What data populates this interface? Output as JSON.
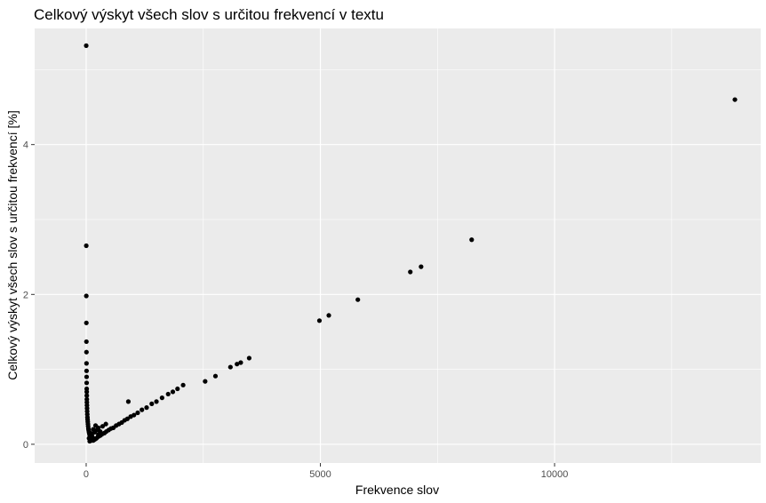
{
  "chart_data": {
    "type": "scatter",
    "title": "Celkový výskyt všech slov s určitou frekvencí v textu",
    "xlabel": "Frekvence slov",
    "ylabel": "Celkový výskyt všech slov s určitou frekvencí [%]",
    "xlim": [
      -1100,
      14400
    ],
    "ylim": [
      -0.25,
      5.55
    ],
    "x_ticks": [
      {
        "value": 0,
        "label": "0"
      },
      {
        "value": 5000,
        "label": "5000"
      },
      {
        "value": 10000,
        "label": "10000"
      }
    ],
    "y_ticks": [
      {
        "value": 0,
        "label": "0"
      },
      {
        "value": 2,
        "label": "2"
      },
      {
        "value": 4,
        "label": "4"
      }
    ],
    "x_minor": [
      2500,
      7500,
      12500
    ],
    "y_minor": [
      1,
      3,
      5
    ],
    "grid": true,
    "point_color": "#000000",
    "points": [
      {
        "x": 1,
        "y": 5.32
      },
      {
        "x": 2,
        "y": 2.65
      },
      {
        "x": 3,
        "y": 1.98
      },
      {
        "x": 4,
        "y": 1.62
      },
      {
        "x": 5,
        "y": 1.37
      },
      {
        "x": 6,
        "y": 1.23
      },
      {
        "x": 7,
        "y": 1.08
      },
      {
        "x": 8,
        "y": 0.98
      },
      {
        "x": 9,
        "y": 0.9
      },
      {
        "x": 10,
        "y": 0.82
      },
      {
        "x": 11,
        "y": 0.74
      },
      {
        "x": 12,
        "y": 0.7
      },
      {
        "x": 13,
        "y": 0.65
      },
      {
        "x": 14,
        "y": 0.6
      },
      {
        "x": 15,
        "y": 0.56
      },
      {
        "x": 17,
        "y": 0.52
      },
      {
        "x": 19,
        "y": 0.48
      },
      {
        "x": 21,
        "y": 0.44
      },
      {
        "x": 24,
        "y": 0.4
      },
      {
        "x": 27,
        "y": 0.36
      },
      {
        "x": 30,
        "y": 0.33
      },
      {
        "x": 34,
        "y": 0.3
      },
      {
        "x": 38,
        "y": 0.27
      },
      {
        "x": 42,
        "y": 0.24
      },
      {
        "x": 47,
        "y": 0.21
      },
      {
        "x": 52,
        "y": 0.19
      },
      {
        "x": 58,
        "y": 0.17
      },
      {
        "x": 64,
        "y": 0.15
      },
      {
        "x": 72,
        "y": 0.13
      },
      {
        "x": 80,
        "y": 0.11
      },
      {
        "x": 90,
        "y": 0.1
      },
      {
        "x": 100,
        "y": 0.08
      },
      {
        "x": 115,
        "y": 0.07
      },
      {
        "x": 130,
        "y": 0.06
      },
      {
        "x": 150,
        "y": 0.05
      },
      {
        "x": 170,
        "y": 0.06
      },
      {
        "x": 195,
        "y": 0.07
      },
      {
        "x": 220,
        "y": 0.08
      },
      {
        "x": 250,
        "y": 0.1
      },
      {
        "x": 280,
        "y": 0.11
      },
      {
        "x": 310,
        "y": 0.12
      },
      {
        "x": 350,
        "y": 0.14
      },
      {
        "x": 390,
        "y": 0.15
      },
      {
        "x": 430,
        "y": 0.17
      },
      {
        "x": 480,
        "y": 0.19
      },
      {
        "x": 530,
        "y": 0.21
      },
      {
        "x": 580,
        "y": 0.22
      },
      {
        "x": 640,
        "y": 0.25
      },
      {
        "x": 700,
        "y": 0.27
      },
      {
        "x": 760,
        "y": 0.29
      },
      {
        "x": 820,
        "y": 0.32
      },
      {
        "x": 880,
        "y": 0.34
      },
      {
        "x": 950,
        "y": 0.37
      },
      {
        "x": 1020,
        "y": 0.39
      },
      {
        "x": 1100,
        "y": 0.42
      },
      {
        "x": 1190,
        "y": 0.46
      },
      {
        "x": 1290,
        "y": 0.49
      },
      {
        "x": 1400,
        "y": 0.54
      },
      {
        "x": 1500,
        "y": 0.57
      },
      {
        "x": 1620,
        "y": 0.62
      },
      {
        "x": 1750,
        "y": 0.67
      },
      {
        "x": 1850,
        "y": 0.7
      },
      {
        "x": 1950,
        "y": 0.74
      },
      {
        "x": 2070,
        "y": 0.79
      },
      {
        "x": 2540,
        "y": 0.84
      },
      {
        "x": 2760,
        "y": 0.91
      },
      {
        "x": 3080,
        "y": 1.03
      },
      {
        "x": 3220,
        "y": 1.07
      },
      {
        "x": 3300,
        "y": 1.09
      },
      {
        "x": 3480,
        "y": 1.15
      },
      {
        "x": 4980,
        "y": 1.65
      },
      {
        "x": 5180,
        "y": 1.72
      },
      {
        "x": 5800,
        "y": 1.93
      },
      {
        "x": 6920,
        "y": 2.3
      },
      {
        "x": 7150,
        "y": 2.37
      },
      {
        "x": 8230,
        "y": 2.73
      },
      {
        "x": 13850,
        "y": 4.6
      },
      {
        "x": 90,
        "y": 0.15
      },
      {
        "x": 120,
        "y": 0.12
      },
      {
        "x": 150,
        "y": 0.2
      },
      {
        "x": 180,
        "y": 0.16
      },
      {
        "x": 200,
        "y": 0.25
      },
      {
        "x": 230,
        "y": 0.19
      },
      {
        "x": 260,
        "y": 0.22
      },
      {
        "x": 300,
        "y": 0.17
      },
      {
        "x": 350,
        "y": 0.24
      },
      {
        "x": 420,
        "y": 0.27
      },
      {
        "x": 900,
        "y": 0.57
      },
      {
        "x": 60,
        "y": 0.08
      },
      {
        "x": 75,
        "y": 0.04
      },
      {
        "x": 110,
        "y": 0.05
      },
      {
        "x": 140,
        "y": 0.09
      },
      {
        "x": 260,
        "y": 0.13
      }
    ]
  }
}
